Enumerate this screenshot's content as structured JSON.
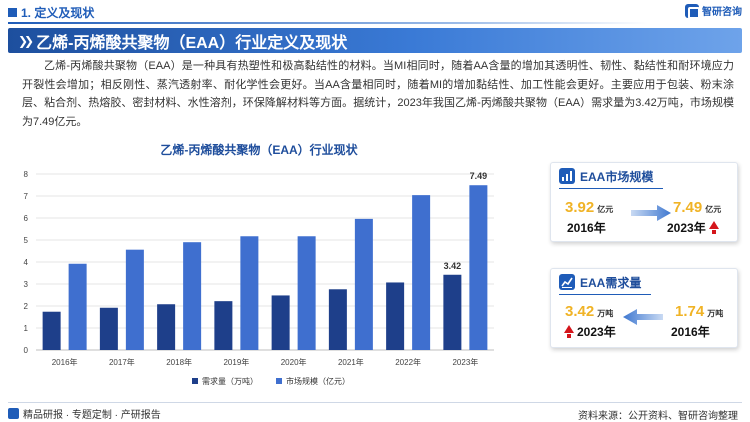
{
  "header": {
    "section_label": "1. 定义及现状",
    "logo_text": "智研咨询",
    "banner_title": "乙烯-丙烯酸共聚物（EAA）行业定义及现状"
  },
  "description": "乙烯-丙烯酸共聚物（EAA）是一种具有热塑性和极高黏结性的材料。当MI相同时，随着AA含量的增加其透明性、韧性、黏结性和耐环境应力开裂性会增加；相反刚性、蒸汽透射率、耐化学性会更好。当AA含量相同时，随着MI的增加黏结性、加工性能会更好。主要应用于包装、粉末涂层、粘合剂、热熔胶、密封材料、水性溶剂，环保降解材料等方面。据统计，2023年我国乙烯-丙烯酸共聚物（EAA）需求量为3.42万吨，市场规模为7.49亿元。",
  "chart_data": {
    "type": "bar",
    "title": "乙烯-丙烯酸共聚物（EAA）行业现状",
    "categories": [
      "2016年",
      "2017年",
      "2018年",
      "2019年",
      "2020年",
      "2021年",
      "2022年",
      "2023年"
    ],
    "series": [
      {
        "name": "需求量（万吨）",
        "color": "#1e3f8a",
        "values": [
          1.74,
          1.92,
          2.08,
          2.22,
          2.48,
          2.76,
          3.07,
          3.42
        ]
      },
      {
        "name": "市场规模（亿元）",
        "color": "#3f6fcf",
        "values": [
          3.92,
          4.56,
          4.9,
          5.17,
          5.17,
          5.96,
          7.04,
          7.49
        ]
      }
    ],
    "data_labels": [
      {
        "series": 0,
        "index": 7,
        "text": "3.42"
      },
      {
        "series": 1,
        "index": 7,
        "text": "7.49"
      }
    ],
    "yticks": [
      "0",
      "1",
      "2",
      "3",
      "4",
      "5",
      "6",
      "7",
      "8"
    ],
    "ylim": [
      0,
      8
    ],
    "grid": true,
    "legend_position": "bottom"
  },
  "cards": {
    "market": {
      "title": "EAA市场规模",
      "start": {
        "value": "3.92",
        "unit": "亿元",
        "year": "2016年"
      },
      "end": {
        "value": "7.49",
        "unit": "亿元",
        "year": "2023年"
      }
    },
    "demand": {
      "title": "EAA需求量",
      "start": {
        "value": "3.42",
        "unit": "万吨",
        "year": "2023年"
      },
      "end": {
        "value": "1.74",
        "unit": "万吨",
        "year": "2016年"
      }
    }
  },
  "footer": {
    "left_text": "精品研报 · 专题定制 · 产研报告",
    "source": "资料来源：公开资料、智研咨询整理"
  },
  "colors": {
    "accent": "#1f5cb8",
    "highlight": "#f0b326",
    "up": "#d4151b"
  }
}
